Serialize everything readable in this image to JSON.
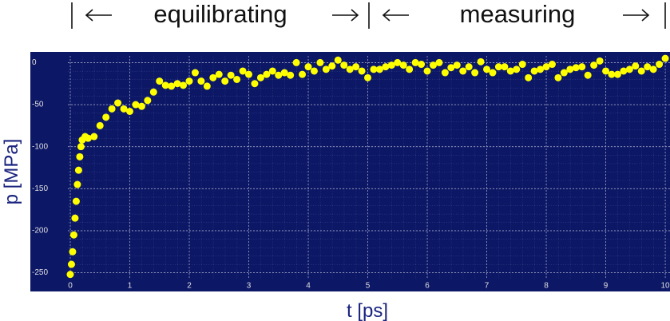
{
  "chart_data": {
    "type": "scatter",
    "annotations": [
      "equilibrating",
      "measuring"
    ],
    "xlabel": "t [ps]",
    "ylabel": "p [MPa]",
    "x": [
      0,
      0.02,
      0.04,
      0.06,
      0.08,
      0.1,
      0.12,
      0.14,
      0.16,
      0.18,
      0.2,
      0.25,
      0.3,
      0.4,
      0.5,
      0.6,
      0.7,
      0.8,
      0.9,
      1.0,
      1.1,
      1.2,
      1.3,
      1.4,
      1.5,
      1.6,
      1.7,
      1.8,
      1.9,
      2.0,
      2.1,
      2.2,
      2.3,
      2.4,
      2.5,
      2.6,
      2.7,
      2.8,
      2.9,
      3.0,
      3.1,
      3.2,
      3.3,
      3.4,
      3.5,
      3.6,
      3.7,
      3.8,
      3.9,
      4.0,
      4.1,
      4.2,
      4.3,
      4.4,
      4.5,
      4.6,
      4.7,
      4.8,
      4.9,
      5.0,
      5.1,
      5.2,
      5.3,
      5.4,
      5.5,
      5.6,
      5.7,
      5.8,
      5.9,
      6.0,
      6.1,
      6.2,
      6.3,
      6.4,
      6.5,
      6.6,
      6.7,
      6.8,
      6.9,
      7.0,
      7.1,
      7.2,
      7.3,
      7.4,
      7.5,
      7.6,
      7.7,
      7.8,
      7.9,
      8.0,
      8.1,
      8.2,
      8.3,
      8.4,
      8.5,
      8.6,
      8.7,
      8.8,
      8.9,
      9.0,
      9.1,
      9.2,
      9.3,
      9.4,
      9.5,
      9.6,
      9.7,
      9.8,
      9.9,
      10.0
    ],
    "series": [
      {
        "color": "#ffff00",
        "values": [
          -252,
          -240,
          -225,
          -205,
          -185,
          -165,
          -145,
          -128,
          -112,
          -100,
          -92,
          -88,
          -90,
          -88,
          -75,
          -65,
          -55,
          -48,
          -55,
          -58,
          -50,
          -52,
          -45,
          -35,
          -22,
          -27,
          -28,
          -25,
          -27,
          -22,
          -12,
          -22,
          -28,
          -18,
          -14,
          -22,
          -15,
          -20,
          -10,
          -14,
          -25,
          -18,
          -14,
          -10,
          -15,
          -12,
          -15,
          0,
          -14,
          -5,
          -10,
          0,
          -8,
          -4,
          3,
          -3,
          -8,
          -5,
          -10,
          -18,
          -8,
          -8,
          -5,
          -3,
          0,
          -3,
          -8,
          0,
          -2,
          -10,
          -3,
          0,
          -12,
          -6,
          -3,
          -10,
          -5,
          -12,
          1,
          -8,
          -12,
          -5,
          -5,
          -10,
          -8,
          -2,
          -18,
          -10,
          -8,
          -5,
          -2,
          -18,
          -12,
          -8,
          -6,
          -5,
          -15,
          -3,
          2,
          -10,
          -14,
          -14,
          -10,
          -8,
          -4,
          -10,
          -5,
          -8,
          -2,
          5
        ]
      }
    ],
    "xlim": [
      -0.04,
      10.08
    ],
    "ylim": [
      -258,
      8
    ],
    "xticks": [
      0,
      1,
      2,
      3,
      4,
      5,
      6,
      7,
      8,
      9,
      10
    ],
    "yticks": [
      0,
      -50,
      -100,
      -150,
      -200,
      -250
    ],
    "grid": true
  }
}
